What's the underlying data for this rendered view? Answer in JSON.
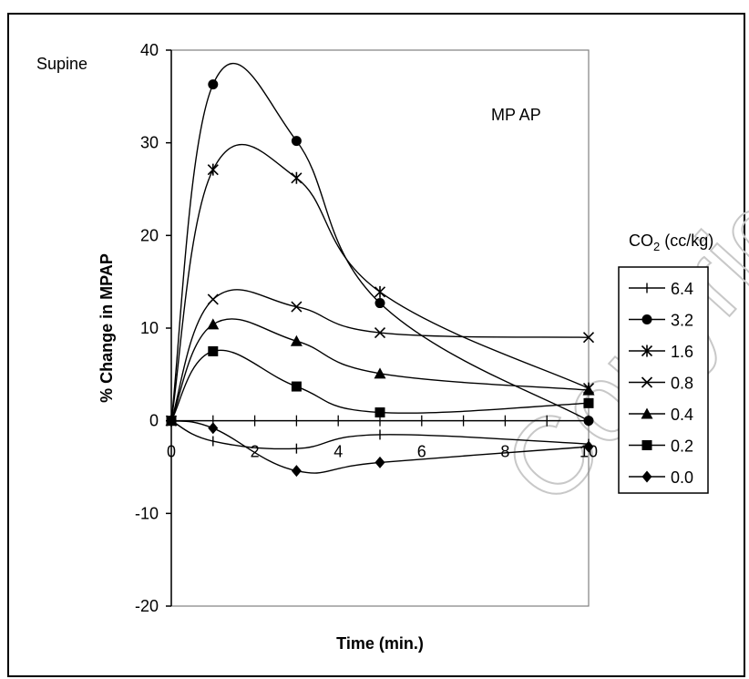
{
  "chart_data": {
    "type": "line",
    "panel_label": "Supine",
    "annotation": "MP AP",
    "ylabel": "% Change in MPAP",
    "xlabel": "Time (min.)",
    "xlim": [
      0,
      10
    ],
    "ylim": [
      -20,
      40
    ],
    "x_ticks": [
      0,
      2,
      4,
      6,
      8,
      10
    ],
    "x_tick_labels": [
      "0",
      "2",
      "4",
      "6",
      "8",
      "10"
    ],
    "y_ticks": [
      -20,
      -10,
      0,
      10,
      20,
      30,
      40
    ],
    "y_tick_labels": [
      "-20",
      "-10",
      "0",
      "10",
      "20",
      "30",
      "40"
    ],
    "grid": false,
    "legend_title_main": "CO",
    "legend_title_sub": "2",
    "legend_title_rest": " (cc/kg)",
    "legend_position": "right",
    "watermark": "Copyright HMP",
    "series": [
      {
        "name": "6.4",
        "marker": "plus",
        "x": [
          0,
          1,
          3,
          5,
          10
        ],
        "y": [
          0,
          -2.2,
          -3,
          -1.5,
          -2.5
        ]
      },
      {
        "name": "3.2",
        "marker": "circle",
        "x": [
          0,
          1,
          3,
          5,
          10
        ],
        "y": [
          0,
          36.3,
          30.2,
          12.7,
          0
        ]
      },
      {
        "name": "1.6",
        "marker": "star",
        "x": [
          0,
          1,
          3,
          5,
          10
        ],
        "y": [
          0,
          27.1,
          26.2,
          13.9,
          3.5
        ]
      },
      {
        "name": "0.8",
        "marker": "x",
        "x": [
          0,
          1,
          3,
          5,
          10
        ],
        "y": [
          0,
          13.1,
          12.3,
          9.5,
          9.0
        ]
      },
      {
        "name": "0.4",
        "marker": "triangle",
        "x": [
          0,
          1,
          3,
          5,
          10
        ],
        "y": [
          0,
          10.4,
          8.6,
          5.1,
          3.3
        ]
      },
      {
        "name": "0.2",
        "marker": "square",
        "x": [
          0,
          1,
          3,
          5,
          10
        ],
        "y": [
          0,
          7.5,
          3.7,
          0.9,
          1.9
        ]
      },
      {
        "name": "0.0",
        "marker": "diamond",
        "x": [
          0,
          1,
          3,
          5,
          10
        ],
        "y": [
          0,
          -0.8,
          -5.4,
          -4.5,
          -2.8
        ]
      }
    ]
  }
}
